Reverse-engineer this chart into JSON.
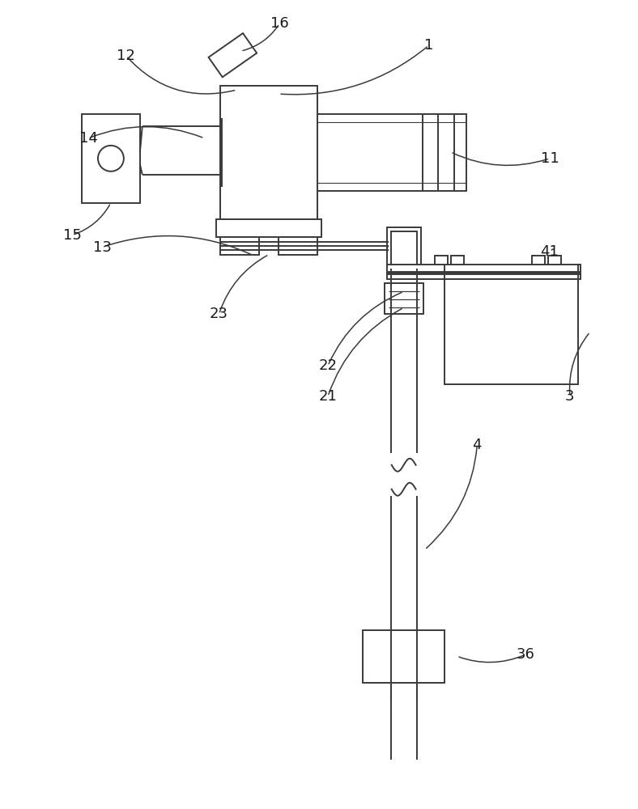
{
  "bg_color": "#ffffff",
  "lc": "#3a3a3a",
  "lw": 1.4,
  "fig_width": 7.88,
  "fig_height": 10.0
}
